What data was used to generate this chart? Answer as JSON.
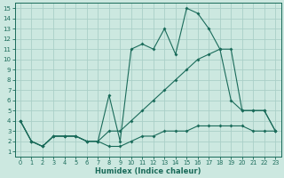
{
  "xlabel": "Humidex (Indice chaleur)",
  "bg_color": "#cce8e0",
  "grid_color": "#aacfc8",
  "line_color": "#1a6b5a",
  "xlim": [
    -0.5,
    23.5
  ],
  "ylim": [
    0.5,
    15.5
  ],
  "xticks": [
    0,
    1,
    2,
    3,
    4,
    5,
    6,
    7,
    8,
    9,
    10,
    11,
    12,
    13,
    14,
    15,
    16,
    17,
    18,
    19,
    20,
    21,
    22,
    23
  ],
  "yticks": [
    1,
    2,
    3,
    4,
    5,
    6,
    7,
    8,
    9,
    10,
    11,
    12,
    13,
    14,
    15
  ],
  "line1_x": [
    0,
    1,
    2,
    3,
    4,
    5,
    6,
    7,
    8,
    9,
    10,
    11,
    12,
    13,
    14,
    15,
    16,
    17,
    18,
    19,
    20,
    21,
    22,
    23
  ],
  "line1_y": [
    4,
    2,
    1.5,
    2.5,
    2.5,
    2.5,
    2,
    2,
    1.5,
    1.5,
    2,
    2.5,
    2.5,
    3,
    3,
    3,
    3.5,
    3.5,
    3.5,
    3.5,
    3.5,
    3,
    3,
    3
  ],
  "line2_x": [
    0,
    1,
    2,
    3,
    4,
    5,
    6,
    7,
    8,
    9,
    10,
    11,
    12,
    13,
    14,
    15,
    16,
    17,
    18,
    19,
    20,
    21,
    22,
    23
  ],
  "line2_y": [
    4,
    2,
    1.5,
    2.5,
    2.5,
    2.5,
    2,
    2,
    6.5,
    2,
    11,
    11.5,
    11,
    13,
    10.5,
    15,
    14.5,
    13,
    11,
    6,
    5,
    5,
    5,
    3
  ],
  "line3_x": [
    0,
    1,
    2,
    3,
    4,
    5,
    6,
    7,
    8,
    9,
    10,
    11,
    12,
    13,
    14,
    15,
    16,
    17,
    18,
    19,
    20,
    21,
    22,
    23
  ],
  "line3_y": [
    4,
    2,
    1.5,
    2.5,
    2.5,
    2.5,
    2,
    2,
    3,
    3,
    4,
    5,
    6,
    7,
    8,
    9,
    10,
    10.5,
    11,
    11,
    5,
    5,
    5,
    3
  ]
}
